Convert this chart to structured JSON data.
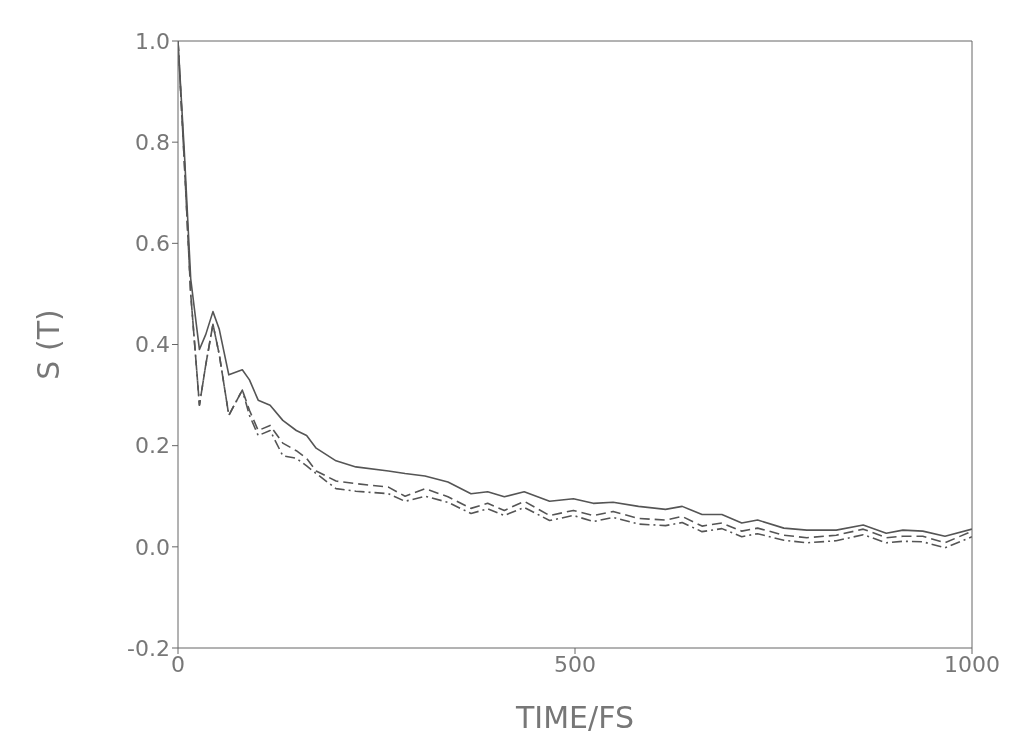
{
  "chart_data": {
    "type": "line",
    "xlabel": "TIME/FS",
    "ylabel": "S (T)",
    "x": [
      0,
      8,
      16,
      27,
      35,
      44,
      52,
      64,
      81,
      90,
      101,
      116,
      132,
      149,
      162,
      174,
      199,
      224,
      265,
      286,
      311,
      340,
      369,
      390,
      411,
      436,
      468,
      498,
      523,
      548,
      580,
      614,
      635,
      660,
      685,
      710,
      730,
      763,
      792,
      829,
      863,
      892,
      913,
      938,
      966,
      1000
    ],
    "series": [
      {
        "color": "#555555",
        "line_style": "solid",
        "values": [
          1.0,
          0.78,
          0.53,
          0.39,
          0.42,
          0.465,
          0.43,
          0.34,
          0.35,
          0.33,
          0.29,
          0.28,
          0.25,
          0.23,
          0.22,
          0.195,
          0.17,
          0.158,
          0.15,
          0.145,
          0.14,
          0.128,
          0.105,
          0.109,
          0.099,
          0.109,
          0.09,
          0.095,
          0.086,
          0.088,
          0.08,
          0.074,
          0.08,
          0.064,
          0.064,
          0.047,
          0.053,
          0.037,
          0.033,
          0.033,
          0.043,
          0.027,
          0.033,
          0.031,
          0.021,
          0.035
        ]
      },
      {
        "color": "#555555",
        "line_style": "dashed",
        "values": [
          1.0,
          0.76,
          0.5,
          0.28,
          0.36,
          0.44,
          0.38,
          0.26,
          0.31,
          0.27,
          0.23,
          0.24,
          0.205,
          0.19,
          0.175,
          0.15,
          0.13,
          0.125,
          0.118,
          0.1,
          0.115,
          0.099,
          0.076,
          0.086,
          0.072,
          0.09,
          0.062,
          0.072,
          0.062,
          0.07,
          0.056,
          0.053,
          0.06,
          0.041,
          0.047,
          0.031,
          0.037,
          0.023,
          0.018,
          0.023,
          0.035,
          0.018,
          0.021,
          0.021,
          0.008,
          0.031
        ]
      },
      {
        "color": "#555555",
        "line_style": "dashdot",
        "values": [
          1.0,
          0.76,
          0.5,
          0.28,
          0.36,
          0.44,
          0.38,
          0.26,
          0.31,
          0.26,
          0.22,
          0.23,
          0.18,
          0.175,
          0.16,
          0.145,
          0.115,
          0.11,
          0.105,
          0.09,
          0.1,
          0.088,
          0.066,
          0.075,
          0.062,
          0.078,
          0.052,
          0.062,
          0.05,
          0.058,
          0.045,
          0.042,
          0.048,
          0.03,
          0.036,
          0.02,
          0.026,
          0.013,
          0.008,
          0.012,
          0.024,
          0.008,
          0.011,
          0.01,
          -0.002,
          0.02
        ]
      }
    ],
    "xlim": [
      0,
      1000
    ],
    "xticks": [
      0,
      500,
      1000
    ],
    "ylim": [
      -0.2,
      1.0
    ],
    "yticks": [
      {
        "value": -0.2,
        "label": "-0.2"
      },
      {
        "value": 0,
        "label": "0.0"
      },
      0.2,
      0.4,
      0.6,
      0.8,
      {
        "value": 1.0,
        "label": "1.0"
      }
    ],
    "grid": false,
    "legend": false,
    "marker": "none"
  }
}
